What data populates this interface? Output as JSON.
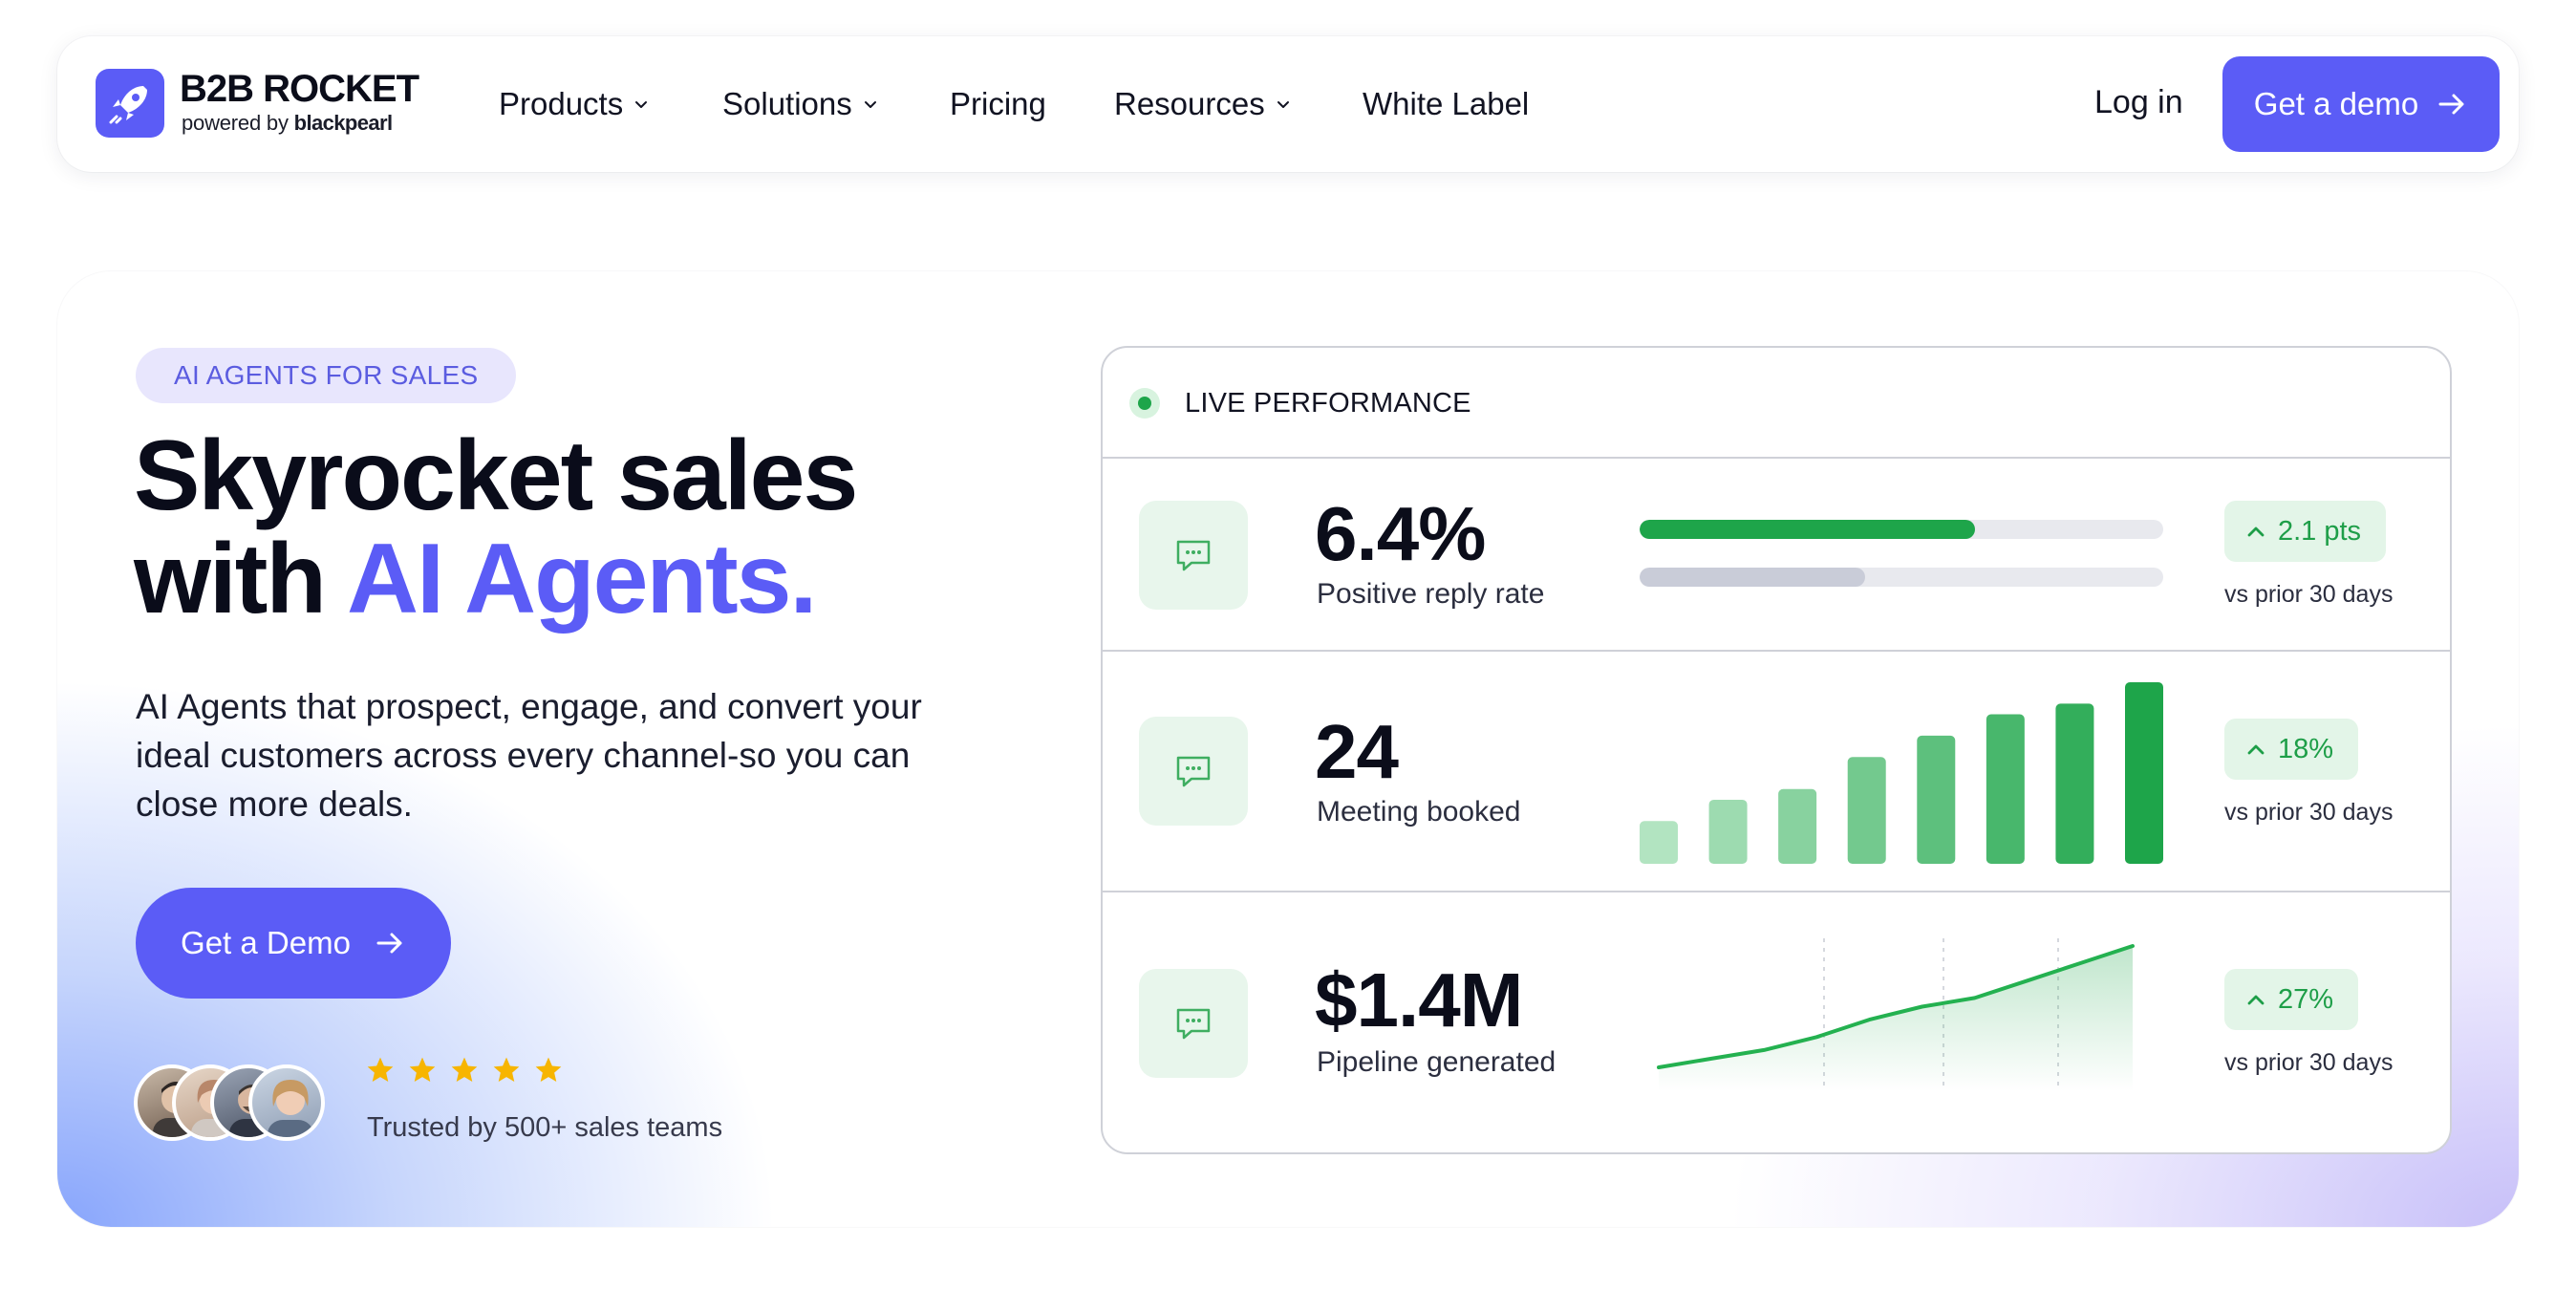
{
  "brand": {
    "name": "B2B ROCKET",
    "powered_prefix": "powered by",
    "powered_brand": "blackpearl",
    "accent": "#5b5cf6"
  },
  "nav": {
    "items": [
      {
        "label": "Products",
        "has_dropdown": true
      },
      {
        "label": "Solutions",
        "has_dropdown": true
      },
      {
        "label": "Pricing",
        "has_dropdown": false
      },
      {
        "label": "Resources",
        "has_dropdown": true
      },
      {
        "label": "White Label",
        "has_dropdown": false
      }
    ],
    "login": "Log in",
    "demo": "Get a demo"
  },
  "hero": {
    "badge": "AI AGENTS FOR SALES",
    "title_line1": "Skyrocket sales",
    "title_line2_prefix": "with ",
    "title_line2_accent": "AI Agents.",
    "description": "AI Agents that prospect, engage, and convert your ideal customers across every channel-so you can close more deals.",
    "cta": "Get a Demo",
    "rating_stars": 5,
    "trusted": "Trusted by 500+ sales teams",
    "avatar_count": 4
  },
  "performance": {
    "title": "LIVE PERFORMANCE",
    "metrics": [
      {
        "value": "6.4%",
        "label": "Positive reply rate",
        "delta": "2.1 pts",
        "comparison": "vs prior 30 days",
        "visual": "progress",
        "progress_current": 0.64,
        "progress_prior": 0.43
      },
      {
        "value": "24",
        "label": "Meeting booked",
        "delta": "18%",
        "comparison": "vs prior 30 days",
        "visual": "bars",
        "bar_values": [
          4,
          6,
          7,
          10,
          12,
          14,
          15,
          17
        ]
      },
      {
        "value": "$1.4M",
        "label": "Pipeline generated",
        "delta": "27%",
        "comparison": "vs prior 30 days",
        "visual": "sparkline",
        "spark_values": [
          2,
          4,
          6,
          9,
          13,
          16,
          18,
          22,
          26,
          30
        ]
      }
    ],
    "positive_color": "#1ea54a"
  }
}
